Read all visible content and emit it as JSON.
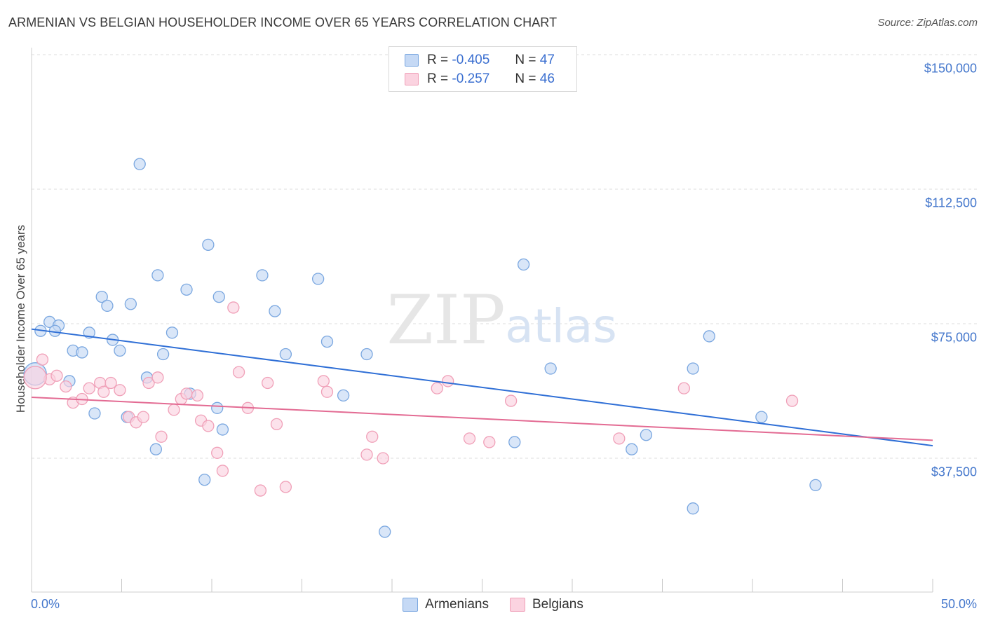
{
  "header": {
    "title": "ARMENIAN VS BELGIAN HOUSEHOLDER INCOME OVER 65 YEARS CORRELATION CHART",
    "source": "Source: ZipAtlas.com"
  },
  "watermark": {
    "zip": "ZIP",
    "atlas": "atlas"
  },
  "legend": {
    "rows": [
      {
        "r_label": "R =",
        "r_value": "-0.405",
        "n_label": "N =",
        "n_value": "47",
        "color": "#7aa7e0",
        "fill": "#c5d9f5"
      },
      {
        "r_label": "R =",
        "r_value": "-0.257",
        "n_label": "N =",
        "n_value": "46",
        "color": "#f0a0b8",
        "fill": "#fbd3e0"
      }
    ]
  },
  "bottom_legend": {
    "armenians": "Armenians",
    "belgians": "Belgians"
  },
  "colors": {
    "armenians_stroke": "#7aa7e0",
    "armenians_fill": "#c5d9f5",
    "armenians_line": "#2f6fd6",
    "belgians_stroke": "#f0a0b8",
    "belgians_fill": "#fbd3e0",
    "belgians_line": "#e36b93",
    "axis_text": "#4477cc"
  },
  "chart_data": {
    "type": "scatter",
    "title": "ARMENIAN VS BELGIAN HOUSEHOLDER INCOME OVER 65 YEARS CORRELATION CHART",
    "xlabel": "",
    "ylabel": "Householder Income Over 65 years",
    "xlim": [
      0,
      50
    ],
    "ylim": [
      0,
      157500
    ],
    "x_tick_labels": [
      "0.0%",
      "50.0%"
    ],
    "y_ticks": [
      37500,
      75000,
      112500,
      150000
    ],
    "y_tick_labels": [
      "$37,500",
      "$75,000",
      "$112,500",
      "$150,000"
    ],
    "grid": "horizontal dashed",
    "legend_position": "top-center",
    "series": [
      {
        "name": "Armenians",
        "r": -0.405,
        "n": 47,
        "trend": [
          [
            0,
            73500
          ],
          [
            50,
            41000
          ]
        ],
        "points": [
          [
            0.5,
            73000
          ],
          [
            1.0,
            75500
          ],
          [
            1.5,
            74500
          ],
          [
            1.3,
            73000
          ],
          [
            2.1,
            59000
          ],
          [
            2.3,
            67500
          ],
          [
            2.8,
            67000
          ],
          [
            3.2,
            72500
          ],
          [
            3.5,
            50000
          ],
          [
            3.9,
            82500
          ],
          [
            4.2,
            80000
          ],
          [
            4.5,
            70500
          ],
          [
            4.9,
            67500
          ],
          [
            5.3,
            49000
          ],
          [
            5.5,
            80500
          ],
          [
            6.0,
            119500
          ],
          [
            6.4,
            60000
          ],
          [
            6.9,
            40000
          ],
          [
            7.0,
            88500
          ],
          [
            7.3,
            66500
          ],
          [
            7.8,
            72500
          ],
          [
            8.6,
            84500
          ],
          [
            8.8,
            55500
          ],
          [
            9.6,
            31500
          ],
          [
            9.8,
            97000
          ],
          [
            10.4,
            82500
          ],
          [
            10.6,
            45500
          ],
          [
            10.3,
            51500
          ],
          [
            12.8,
            88500
          ],
          [
            13.5,
            78500
          ],
          [
            14.1,
            66500
          ],
          [
            15.9,
            87500
          ],
          [
            16.4,
            70000
          ],
          [
            17.3,
            55000
          ],
          [
            18.6,
            66500
          ],
          [
            19.6,
            17000
          ],
          [
            26.8,
            42000
          ],
          [
            27.3,
            91500
          ],
          [
            28.8,
            62500
          ],
          [
            33.3,
            40000
          ],
          [
            34.1,
            44000
          ],
          [
            36.7,
            62500
          ],
          [
            37.6,
            71500
          ],
          [
            40.5,
            49000
          ],
          [
            36.7,
            23500
          ],
          [
            43.5,
            30000
          ],
          [
            0.2,
            61000
          ]
        ]
      },
      {
        "name": "Belgians",
        "r": -0.257,
        "n": 46,
        "trend": [
          [
            0,
            54500
          ],
          [
            50,
            42500
          ]
        ],
        "points": [
          [
            0.6,
            65000
          ],
          [
            1.0,
            59500
          ],
          [
            1.4,
            60500
          ],
          [
            1.9,
            57500
          ],
          [
            2.3,
            53000
          ],
          [
            2.8,
            54000
          ],
          [
            3.2,
            57000
          ],
          [
            3.8,
            58500
          ],
          [
            4.0,
            56000
          ],
          [
            4.4,
            58500
          ],
          [
            4.9,
            56500
          ],
          [
            5.4,
            49000
          ],
          [
            5.8,
            47500
          ],
          [
            6.2,
            49000
          ],
          [
            6.5,
            58500
          ],
          [
            7.0,
            60000
          ],
          [
            7.2,
            43500
          ],
          [
            7.9,
            51000
          ],
          [
            8.3,
            54000
          ],
          [
            8.6,
            55500
          ],
          [
            9.2,
            55000
          ],
          [
            9.4,
            48000
          ],
          [
            9.8,
            46500
          ],
          [
            10.3,
            39000
          ],
          [
            10.6,
            34000
          ],
          [
            11.2,
            79500
          ],
          [
            11.5,
            61500
          ],
          [
            12.0,
            51500
          ],
          [
            12.7,
            28500
          ],
          [
            13.1,
            58500
          ],
          [
            13.6,
            47000
          ],
          [
            14.1,
            29500
          ],
          [
            16.2,
            59000
          ],
          [
            16.4,
            56000
          ],
          [
            18.6,
            38500
          ],
          [
            18.9,
            43500
          ],
          [
            19.5,
            37500
          ],
          [
            22.5,
            57000
          ],
          [
            23.1,
            59000
          ],
          [
            24.3,
            43000
          ],
          [
            25.4,
            42000
          ],
          [
            26.6,
            53500
          ],
          [
            32.6,
            43000
          ],
          [
            36.2,
            57000
          ],
          [
            42.2,
            53500
          ],
          [
            0.2,
            60000
          ]
        ]
      }
    ]
  }
}
